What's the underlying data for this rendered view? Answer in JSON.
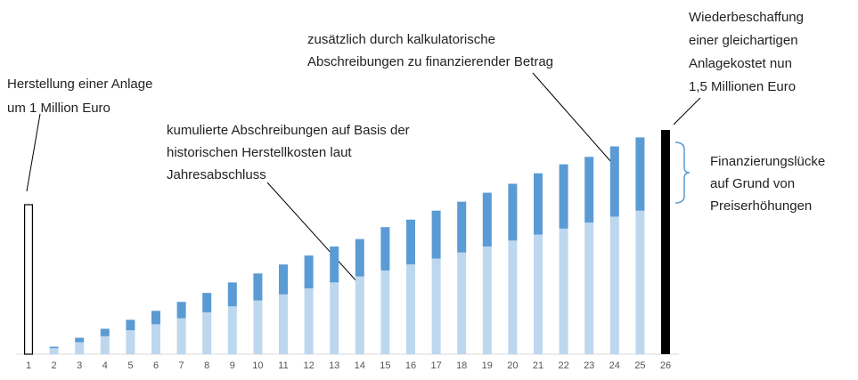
{
  "chart_data": {
    "type": "bar",
    "stacked": true,
    "categories": [
      "1",
      "2",
      "3",
      "4",
      "5",
      "6",
      "7",
      "8",
      "9",
      "10",
      "11",
      "12",
      "13",
      "14",
      "15",
      "16",
      "17",
      "18",
      "19",
      "20",
      "21",
      "22",
      "23",
      "24",
      "25",
      "26"
    ],
    "series": [
      {
        "color": "#ffffff",
        "edgecolor": "#000000",
        "values": [
          1,
          null,
          null,
          null,
          null,
          null,
          null,
          null,
          null,
          null,
          null,
          null,
          null,
          null,
          null,
          null,
          null,
          null,
          null,
          null,
          null,
          null,
          null,
          null,
          null,
          null
        ]
      },
      {
        "color": "#bdd7ee",
        "values": [
          null,
          0.04,
          0.08,
          0.12,
          0.16,
          0.2,
          0.24,
          0.28,
          0.32,
          0.36,
          0.4,
          0.44,
          0.48,
          0.52,
          0.56,
          0.6,
          0.64,
          0.68,
          0.72,
          0.76,
          0.8,
          0.84,
          0.88,
          0.92,
          0.96,
          null
        ]
      },
      {
        "color": "#5b9bd5",
        "values": [
          null,
          0.01,
          0.03,
          0.05,
          0.07,
          0.09,
          0.11,
          0.13,
          0.16,
          0.18,
          0.2,
          0.22,
          0.24,
          0.25,
          0.29,
          0.3,
          0.32,
          0.34,
          0.36,
          0.38,
          0.41,
          0.43,
          0.44,
          0.47,
          0.49,
          null
        ]
      },
      {
        "color": "#000000",
        "values": [
          null,
          null,
          null,
          null,
          null,
          null,
          null,
          null,
          null,
          null,
          null,
          null,
          null,
          null,
          null,
          null,
          null,
          null,
          null,
          null,
          null,
          null,
          null,
          null,
          null,
          1.5
        ]
      }
    ],
    "ylim": [
      0,
      1.6
    ],
    "annotations": [
      {
        "lines": [
          "Herstellung einer Anlage",
          "um 1 Million Euro"
        ]
      },
      {
        "lines": [
          "kumulierte Abschreibungen auf Basis der",
          "historischen Herstellkosten laut",
          "Jahresabschluss"
        ]
      },
      {
        "lines": [
          "zusätzlich durch kalkulatorische",
          "Abschreibungen zu finanzierender Betrag"
        ]
      },
      {
        "lines": [
          "Wiederbeschaffung",
          "einer gleichartigen",
          "Anlagekostet nun",
          "1,5 Millionen Euro"
        ]
      },
      {
        "lines": [
          "Finanzierungslücke",
          "auf Grund von",
          "Preiserhöhungen"
        ]
      }
    ]
  }
}
